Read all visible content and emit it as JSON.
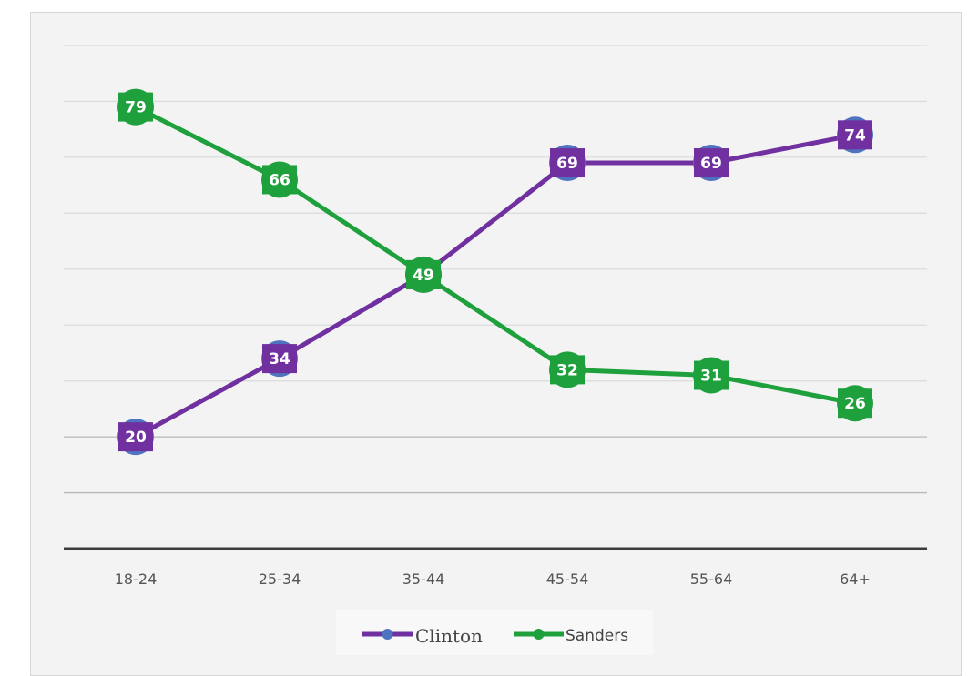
{
  "chart_data": {
    "type": "line",
    "categories": [
      "18-24",
      "25-34",
      "35-44",
      "45-54",
      "55-64",
      "64+"
    ],
    "series": [
      {
        "name": "Clinton",
        "values": [
          20,
          34,
          49,
          69,
          69,
          74
        ],
        "color": "#7030a0",
        "marker_color": "#4f73be"
      },
      {
        "name": "Sanders",
        "values": [
          79,
          66,
          49,
          32,
          31,
          26
        ],
        "color": "#1ea03c",
        "marker_color": "#1ea03c"
      }
    ],
    "data_labels": true,
    "xlabel": "",
    "ylabel": "",
    "ylim": [
      0,
      90
    ],
    "y_ticks_shown": false,
    "grid": true,
    "legend_position": "bottom",
    "background": "#f3f3f3"
  }
}
